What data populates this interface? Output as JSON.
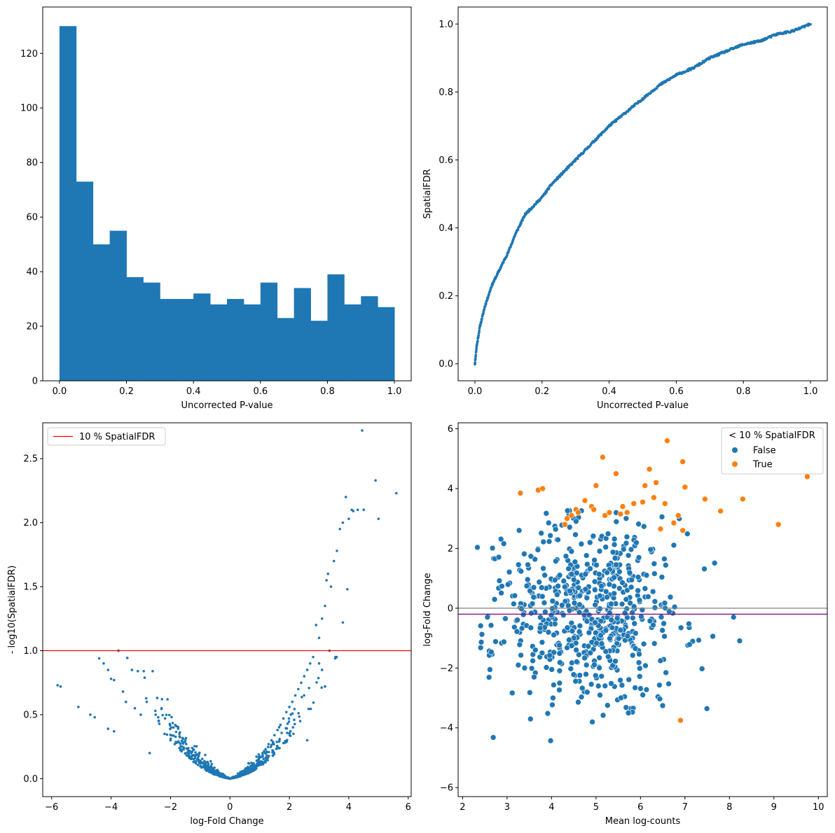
{
  "colors": {
    "blue": "#1f77b4",
    "orange": "#ff7f0e",
    "red": "#ff0000",
    "grey": "#808080",
    "purple": "#800080"
  },
  "chart_data": [
    {
      "id": "hist",
      "type": "bar",
      "title": "",
      "xlabel": "Uncorrected P-value",
      "ylabel": "",
      "xlim": [
        -0.05,
        1.05
      ],
      "ylim": [
        0,
        137
      ],
      "xticks": [
        0.0,
        0.2,
        0.4,
        0.6,
        0.8,
        1.0
      ],
      "xtick_labels": [
        "0.0",
        "0.2",
        "0.4",
        "0.6",
        "0.8",
        "1.0"
      ],
      "yticks": [
        0,
        20,
        40,
        60,
        80,
        100,
        120
      ],
      "ytick_labels": [
        "0",
        "20",
        "40",
        "60",
        "80",
        "100",
        "120"
      ],
      "bin_edges": [
        0.0,
        0.05,
        0.1,
        0.15,
        0.2,
        0.25,
        0.3,
        0.35,
        0.4,
        0.45,
        0.5,
        0.55,
        0.6,
        0.65,
        0.7,
        0.75,
        0.8,
        0.85,
        0.9,
        0.95,
        1.0
      ],
      "values": [
        130,
        73,
        50,
        55,
        38,
        36,
        30,
        30,
        32,
        28,
        30,
        28,
        36,
        23,
        34,
        22,
        39,
        28,
        31,
        27
      ]
    },
    {
      "id": "fdr",
      "type": "scatter",
      "title": "",
      "xlabel": "Uncorrected P-value",
      "ylabel": "SpatialFDR",
      "xlim": [
        -0.05,
        1.05
      ],
      "ylim": [
        -0.05,
        1.05
      ],
      "xticks": [
        0.0,
        0.2,
        0.4,
        0.6,
        0.8,
        1.0
      ],
      "xtick_labels": [
        "0.0",
        "0.2",
        "0.4",
        "0.6",
        "0.8",
        "1.0"
      ],
      "yticks": [
        0.0,
        0.2,
        0.4,
        0.6,
        0.8,
        1.0
      ],
      "ytick_labels": [
        "0.0",
        "0.2",
        "0.4",
        "0.6",
        "0.8",
        "1.0"
      ],
      "curve": [
        [
          0.0,
          0.0
        ],
        [
          0.002,
          0.02
        ],
        [
          0.005,
          0.05
        ],
        [
          0.01,
          0.08
        ],
        [
          0.015,
          0.11
        ],
        [
          0.02,
          0.13
        ],
        [
          0.03,
          0.17
        ],
        [
          0.04,
          0.2
        ],
        [
          0.05,
          0.23
        ],
        [
          0.06,
          0.25
        ],
        [
          0.08,
          0.29
        ],
        [
          0.1,
          0.33
        ],
        [
          0.12,
          0.38
        ],
        [
          0.14,
          0.42
        ],
        [
          0.15,
          0.44
        ],
        [
          0.17,
          0.46
        ],
        [
          0.2,
          0.49
        ],
        [
          0.23,
          0.53
        ],
        [
          0.25,
          0.55
        ],
        [
          0.3,
          0.6
        ],
        [
          0.35,
          0.65
        ],
        [
          0.4,
          0.7
        ],
        [
          0.45,
          0.74
        ],
        [
          0.5,
          0.78
        ],
        [
          0.55,
          0.82
        ],
        [
          0.6,
          0.85
        ],
        [
          0.65,
          0.87
        ],
        [
          0.7,
          0.9
        ],
        [
          0.75,
          0.92
        ],
        [
          0.8,
          0.94
        ],
        [
          0.85,
          0.95
        ],
        [
          0.9,
          0.97
        ],
        [
          0.95,
          0.98
        ],
        [
          1.0,
          1.0
        ]
      ],
      "n_points": 700
    },
    {
      "id": "volcano",
      "type": "scatter",
      "title": "",
      "xlabel": "log-Fold Change",
      "ylabel": "- log10(SpatialFDR)",
      "xlim": [
        -6.3,
        6.1
      ],
      "ylim": [
        -0.14,
        2.78
      ],
      "xticks": [
        -6,
        -4,
        -2,
        0,
        2,
        4,
        6
      ],
      "xtick_labels": [
        "−6",
        "−4",
        "−2",
        "0",
        "2",
        "4",
        "6"
      ],
      "yticks": [
        0.0,
        0.5,
        1.0,
        1.5,
        2.0,
        2.5
      ],
      "ytick_labels": [
        "0.0",
        "0.5",
        "1.0",
        "1.5",
        "2.0",
        "2.5"
      ],
      "hline": 1.0,
      "legend": {
        "label": "10 % SpatialFDR",
        "position": "upper-left"
      },
      "points": [
        [
          -5.8,
          0.73
        ],
        [
          -5.7,
          0.72
        ],
        [
          -5.1,
          0.56
        ],
        [
          -4.7,
          0.5
        ],
        [
          -4.55,
          0.48
        ],
        [
          -4.4,
          0.94
        ],
        [
          -4.25,
          0.9
        ],
        [
          -4.1,
          0.85
        ],
        [
          -4.0,
          0.78
        ],
        [
          -3.9,
          0.77
        ],
        [
          -4.1,
          0.39
        ],
        [
          -3.9,
          0.37
        ],
        [
          -3.75,
          1.0
        ],
        [
          -3.6,
          0.68
        ],
        [
          -3.5,
          0.6
        ],
        [
          -3.3,
          0.85
        ],
        [
          -3.2,
          0.55
        ],
        [
          -3.1,
          0.84
        ],
        [
          -2.9,
          0.84
        ],
        [
          -2.6,
          0.84
        ],
        [
          -2.7,
          0.2
        ],
        [
          -3.0,
          0.5
        ],
        [
          -2.8,
          0.6
        ],
        [
          -2.5,
          0.5
        ],
        [
          -2.4,
          0.45
        ],
        [
          -2.3,
          0.55
        ],
        [
          -2.2,
          0.35
        ],
        [
          -2.1,
          0.62
        ],
        [
          -2.0,
          0.3
        ],
        [
          -1.9,
          0.4
        ],
        [
          -1.8,
          0.28
        ],
        [
          -1.7,
          0.35
        ],
        [
          -1.6,
          0.25
        ],
        [
          -1.5,
          0.3
        ],
        [
          -1.4,
          0.22
        ],
        [
          -1.3,
          0.2
        ],
        [
          -1.2,
          0.18
        ],
        [
          -1.1,
          0.15
        ],
        [
          -1.0,
          0.14
        ],
        [
          -0.9,
          0.12
        ],
        [
          -0.8,
          0.1
        ],
        [
          -0.7,
          0.08
        ],
        [
          -0.6,
          0.06
        ],
        [
          -0.5,
          0.05
        ],
        [
          -0.4,
          0.04
        ],
        [
          -0.3,
          0.03
        ],
        [
          -0.2,
          0.02
        ],
        [
          -0.1,
          0.01
        ],
        [
          0.0,
          0.0
        ],
        [
          0.1,
          0.01
        ],
        [
          0.2,
          0.02
        ],
        [
          0.3,
          0.03
        ],
        [
          0.4,
          0.04
        ],
        [
          0.5,
          0.06
        ],
        [
          0.6,
          0.08
        ],
        [
          0.7,
          0.1
        ],
        [
          0.8,
          0.12
        ],
        [
          0.9,
          0.14
        ],
        [
          1.0,
          0.17
        ],
        [
          1.1,
          0.2
        ],
        [
          1.2,
          0.23
        ],
        [
          1.3,
          0.27
        ],
        [
          1.4,
          0.3
        ],
        [
          1.5,
          0.34
        ],
        [
          1.6,
          0.38
        ],
        [
          1.7,
          0.42
        ],
        [
          1.8,
          0.47
        ],
        [
          1.9,
          0.52
        ],
        [
          2.0,
          0.56
        ],
        [
          2.1,
          0.6
        ],
        [
          2.2,
          0.65
        ],
        [
          2.3,
          0.7
        ],
        [
          2.4,
          0.75
        ],
        [
          2.5,
          0.8
        ],
        [
          2.6,
          0.85
        ],
        [
          2.7,
          0.9
        ],
        [
          2.8,
          0.95
        ],
        [
          2.6,
          0.3
        ],
        [
          3.0,
          0.9
        ],
        [
          3.1,
          0.85
        ],
        [
          3.2,
          0.72
        ],
        [
          2.9,
          1.2
        ],
        [
          3.0,
          1.1
        ],
        [
          3.1,
          1.25
        ],
        [
          3.2,
          1.35
        ],
        [
          3.25,
          1.55
        ],
        [
          3.3,
          1.6
        ],
        [
          3.4,
          1.5
        ],
        [
          3.5,
          1.7
        ],
        [
          3.6,
          1.78
        ],
        [
          3.7,
          1.95
        ],
        [
          3.8,
          2.0
        ],
        [
          3.9,
          2.2
        ],
        [
          4.0,
          2.03
        ],
        [
          4.1,
          2.1
        ],
        [
          4.15,
          2.09
        ],
        [
          4.3,
          2.1
        ],
        [
          4.5,
          2.1
        ],
        [
          4.45,
          2.72
        ],
        [
          4.9,
          2.33
        ],
        [
          5.0,
          2.03
        ],
        [
          5.6,
          2.23
        ],
        [
          3.95,
          1.48
        ],
        [
          3.8,
          1.22
        ],
        [
          3.35,
          1.0
        ],
        [
          3.2,
          0.72
        ]
      ]
    },
    {
      "id": "ma",
      "type": "scatter",
      "title": "",
      "xlabel": "Mean log-counts",
      "ylabel": "log-Fold Change",
      "xlim": [
        1.9,
        10.2
      ],
      "ylim": [
        -6.3,
        6.2
      ],
      "xticks": [
        2,
        3,
        4,
        5,
        6,
        7,
        8,
        9,
        10
      ],
      "xtick_labels": [
        "2",
        "3",
        "4",
        "5",
        "6",
        "7",
        "8",
        "9",
        "10"
      ],
      "yticks": [
        -6,
        -4,
        -2,
        0,
        2,
        4,
        6
      ],
      "ytick_labels": [
        "−6",
        "−4",
        "−2",
        "0",
        "2",
        "4",
        "6"
      ],
      "hline_grey": 0.0,
      "hline_purple": -0.2,
      "legend": {
        "title": "< 10 % SpatialFDR",
        "entries": [
          "False",
          "True"
        ],
        "position": "upper-right"
      },
      "true_points": [
        [
          3.3,
          3.85
        ],
        [
          3.7,
          3.95
        ],
        [
          3.8,
          4.0
        ],
        [
          4.3,
          2.8
        ],
        [
          4.35,
          3.0
        ],
        [
          4.45,
          3.1
        ],
        [
          4.55,
          3.3
        ],
        [
          4.6,
          3.2
        ],
        [
          4.75,
          3.6
        ],
        [
          4.9,
          3.4
        ],
        [
          4.95,
          3.3
        ],
        [
          5.0,
          4.1
        ],
        [
          5.15,
          5.05
        ],
        [
          5.2,
          3.1
        ],
        [
          5.3,
          3.2
        ],
        [
          5.45,
          4.5
        ],
        [
          5.55,
          3.15
        ],
        [
          5.6,
          3.4
        ],
        [
          5.7,
          3.2
        ],
        [
          5.85,
          3.5
        ],
        [
          6.05,
          3.55
        ],
        [
          6.1,
          4.1
        ],
        [
          6.2,
          4.65
        ],
        [
          6.3,
          3.7
        ],
        [
          6.35,
          4.2
        ],
        [
          6.45,
          2.65
        ],
        [
          6.55,
          3.5
        ],
        [
          6.6,
          5.6
        ],
        [
          6.75,
          2.85
        ],
        [
          6.85,
          3.1
        ],
        [
          6.95,
          2.6
        ],
        [
          6.95,
          4.9
        ],
        [
          7.0,
          4.05
        ],
        [
          7.45,
          3.65
        ],
        [
          7.8,
          3.25
        ],
        [
          8.3,
          3.65
        ],
        [
          9.1,
          2.8
        ],
        [
          9.75,
          4.4
        ],
        [
          6.9,
          -3.75
        ]
      ],
      "false_n": 650
    }
  ]
}
